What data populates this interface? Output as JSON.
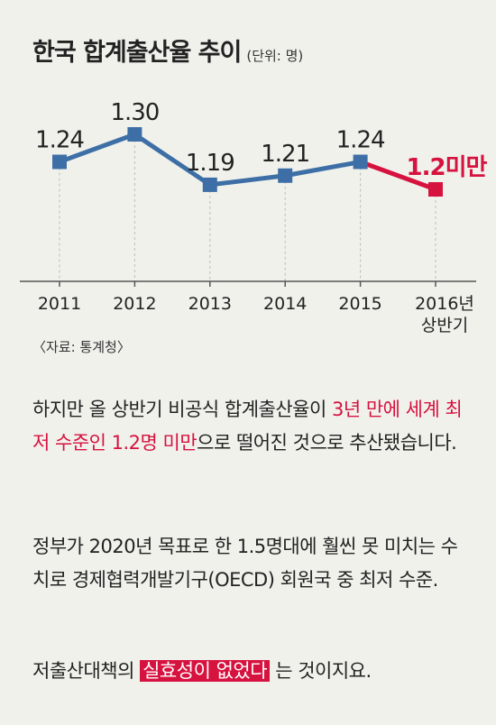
{
  "title": "한국 합계출산율 추이",
  "unit": "(단위: 명)",
  "source": "〈자료: 통계청〉",
  "chart_data": {
    "type": "line",
    "categories": [
      "2011",
      "2012",
      "2013",
      "2014",
      "2015",
      "2016년 상반기"
    ],
    "series": [
      {
        "values": [
          1.24,
          1.3,
          1.19,
          1.21,
          1.24,
          1.18
        ]
      }
    ],
    "data_labels": [
      "1.24",
      "1.30",
      "1.19",
      "1.21",
      "1.24",
      "1.2미만"
    ],
    "grid": "vertical-dashed",
    "colors": {
      "line": "#3d6fa6",
      "projection": "#d6123f",
      "grid": "#bbbbbb"
    }
  },
  "paragraphs": {
    "p1": {
      "a": "하지만 올 상반기 비공식 합계출산율이 ",
      "b": "3년 만에 세계 최저 수준인 1.2명 미만",
      "c": "으로 떨어진 것으로 추산됐습니다."
    },
    "p2": "정부가 2020년 목표로 한 1.5명대에 훨씬 못 미치는 수치로 경제협력개발기구(OECD) 회원국 중 최저 수준.",
    "p3": {
      "a": "저출산대책의 ",
      "b": "실효성이 없었다",
      "c": " 는 것이지요."
    }
  }
}
